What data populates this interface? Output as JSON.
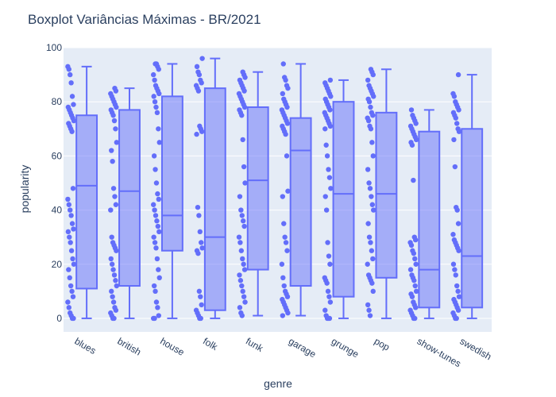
{
  "chart_data": {
    "type": "box",
    "title": "Boxplot Variâncias Máximas - BR/2021",
    "xlabel": "genre",
    "ylabel": "popularity",
    "ylim": [
      -5,
      100
    ],
    "yticks": [
      0,
      20,
      40,
      60,
      80,
      100
    ],
    "grid": true,
    "legend": "none",
    "categories": [
      "blues",
      "british",
      "house",
      "folk",
      "funk",
      "garage",
      "grunge",
      "pop",
      "show-tunes",
      "swedish"
    ],
    "boxes": [
      {
        "category": "blues",
        "min": 0,
        "q1": 11,
        "median": 49,
        "q3": 75,
        "max": 93
      },
      {
        "category": "british",
        "min": 0,
        "q1": 12,
        "median": 47,
        "q3": 77,
        "max": 85
      },
      {
        "category": "house",
        "min": 0,
        "q1": 25,
        "median": 38,
        "q3": 82,
        "max": 94
      },
      {
        "category": "folk",
        "min": 0,
        "q1": 3,
        "median": 30,
        "q3": 85,
        "max": 96
      },
      {
        "category": "funk",
        "min": 1,
        "q1": 18,
        "median": 51,
        "q3": 78,
        "max": 91
      },
      {
        "category": "garage",
        "min": 1,
        "q1": 12,
        "median": 62,
        "q3": 74,
        "max": 94
      },
      {
        "category": "grunge",
        "min": 0,
        "q1": 8,
        "median": 46,
        "q3": 80,
        "max": 88
      },
      {
        "category": "pop",
        "min": 0,
        "q1": 15,
        "median": 46,
        "q3": 76,
        "max": 92
      },
      {
        "category": "show-tunes",
        "min": 0,
        "q1": 4,
        "median": 18,
        "q3": 69,
        "max": 77
      },
      {
        "category": "swedish",
        "min": 0,
        "q1": 4,
        "median": 23,
        "q3": 70,
        "max": 90
      }
    ],
    "points": [
      [
        93,
        92,
        90,
        87,
        82,
        79,
        78,
        77,
        76,
        75,
        74,
        73,
        72,
        71,
        70,
        69,
        48,
        44,
        42,
        40,
        38,
        35,
        33,
        32,
        30,
        28,
        25,
        22,
        20,
        18,
        15,
        12,
        10,
        8,
        6,
        4,
        2,
        1,
        0,
        0
      ],
      [
        85,
        84,
        83,
        82,
        81,
        80,
        79,
        78,
        77,
        76,
        75,
        73,
        70,
        65,
        62,
        58,
        48,
        45,
        42,
        40,
        30,
        28,
        27,
        26,
        25,
        22,
        20,
        18,
        16,
        14,
        12,
        10,
        8,
        6,
        4,
        3,
        2,
        1,
        0,
        0
      ],
      [
        94,
        94,
        93,
        92,
        90,
        88,
        86,
        85,
        84,
        83,
        82,
        80,
        78,
        76,
        70,
        65,
        60,
        55,
        50,
        46,
        44,
        42,
        40,
        38,
        36,
        34,
        32,
        30,
        28,
        26,
        22,
        18,
        15,
        12,
        10,
        6,
        4,
        1,
        0,
        0
      ],
      [
        96,
        93,
        91,
        90,
        88,
        87,
        86,
        85,
        84,
        71,
        70,
        69,
        68,
        41,
        38,
        32,
        28,
        26,
        25,
        24,
        10,
        8,
        5,
        3,
        2,
        1,
        0,
        0
      ],
      [
        91,
        90,
        89,
        88,
        87,
        86,
        85,
        84,
        83,
        82,
        81,
        80,
        79,
        78,
        77,
        76,
        75,
        66,
        56,
        50,
        45,
        40,
        38,
        36,
        34,
        30,
        28,
        25,
        22,
        20,
        18,
        16,
        14,
        12,
        10,
        8,
        6,
        4,
        2,
        1
      ],
      [
        94,
        89,
        88,
        86,
        85,
        83,
        81,
        80,
        79,
        78,
        77,
        76,
        75,
        74,
        73,
        72,
        71,
        70,
        69,
        68,
        60,
        47,
        45,
        35,
        30,
        28,
        25,
        20,
        15,
        12,
        10,
        9,
        8,
        7,
        6,
        5,
        4,
        3,
        2,
        1
      ],
      [
        88,
        87,
        86,
        85,
        84,
        83,
        82,
        81,
        80,
        79,
        78,
        77,
        76,
        75,
        74,
        73,
        72,
        71,
        70,
        64,
        60,
        55,
        52,
        48,
        45,
        40,
        28,
        23,
        20,
        15,
        14,
        13,
        10,
        8,
        6,
        3,
        1,
        0,
        0,
        0
      ],
      [
        92,
        91,
        90,
        88,
        86,
        85,
        84,
        83,
        82,
        81,
        80,
        78,
        76,
        75,
        74,
        73,
        71,
        70,
        65,
        60,
        55,
        50,
        48,
        45,
        42,
        40,
        35,
        30,
        28,
        25,
        22,
        20,
        16,
        15,
        14,
        13,
        10,
        5,
        3,
        1
      ],
      [
        77,
        75,
        74,
        73,
        72,
        71,
        70,
        69,
        68,
        67,
        66,
        65,
        64,
        51,
        30,
        29,
        28,
        27,
        25,
        24,
        22,
        20,
        18,
        16,
        15,
        14,
        12,
        10,
        9,
        8,
        6,
        5,
        4,
        3,
        2,
        1,
        0,
        0
      ],
      [
        90,
        83,
        82,
        80,
        79,
        78,
        77,
        76,
        75,
        74,
        72,
        70,
        69,
        66,
        56,
        41,
        40,
        35,
        31,
        29,
        28,
        27,
        26,
        25,
        20,
        18,
        16,
        12,
        10,
        8,
        7,
        6,
        5,
        4,
        3,
        2,
        1,
        0,
        0
      ]
    ]
  }
}
